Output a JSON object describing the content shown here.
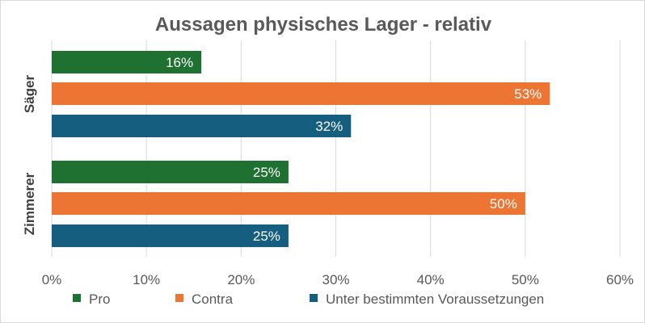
{
  "chart_data": {
    "type": "bar",
    "orientation": "horizontal",
    "title": "Aussagen physisches Lager - relativ",
    "categories": [
      "Säger",
      "Zimmerer"
    ],
    "series": [
      {
        "name": "Pro",
        "color": "#1e7130",
        "values": [
          15.8,
          25
        ],
        "labels": [
          "16%",
          "25%"
        ]
      },
      {
        "name": "Contra",
        "color": "#ec7533",
        "values": [
          52.6,
          50
        ],
        "labels": [
          "53%",
          "50%"
        ]
      },
      {
        "name": "Unter bestimmten Voraussetzungen",
        "color": "#155e80",
        "values": [
          31.6,
          25
        ],
        "labels": [
          "32%",
          "25%"
        ]
      }
    ],
    "xlim": [
      0,
      60
    ],
    "xticks": [
      0,
      10,
      20,
      30,
      40,
      50,
      60
    ],
    "tick_labels": [
      "0%",
      "10%",
      "20%",
      "30%",
      "40%",
      "50%",
      "60%"
    ],
    "grid": true,
    "legend_position": "bottom"
  }
}
